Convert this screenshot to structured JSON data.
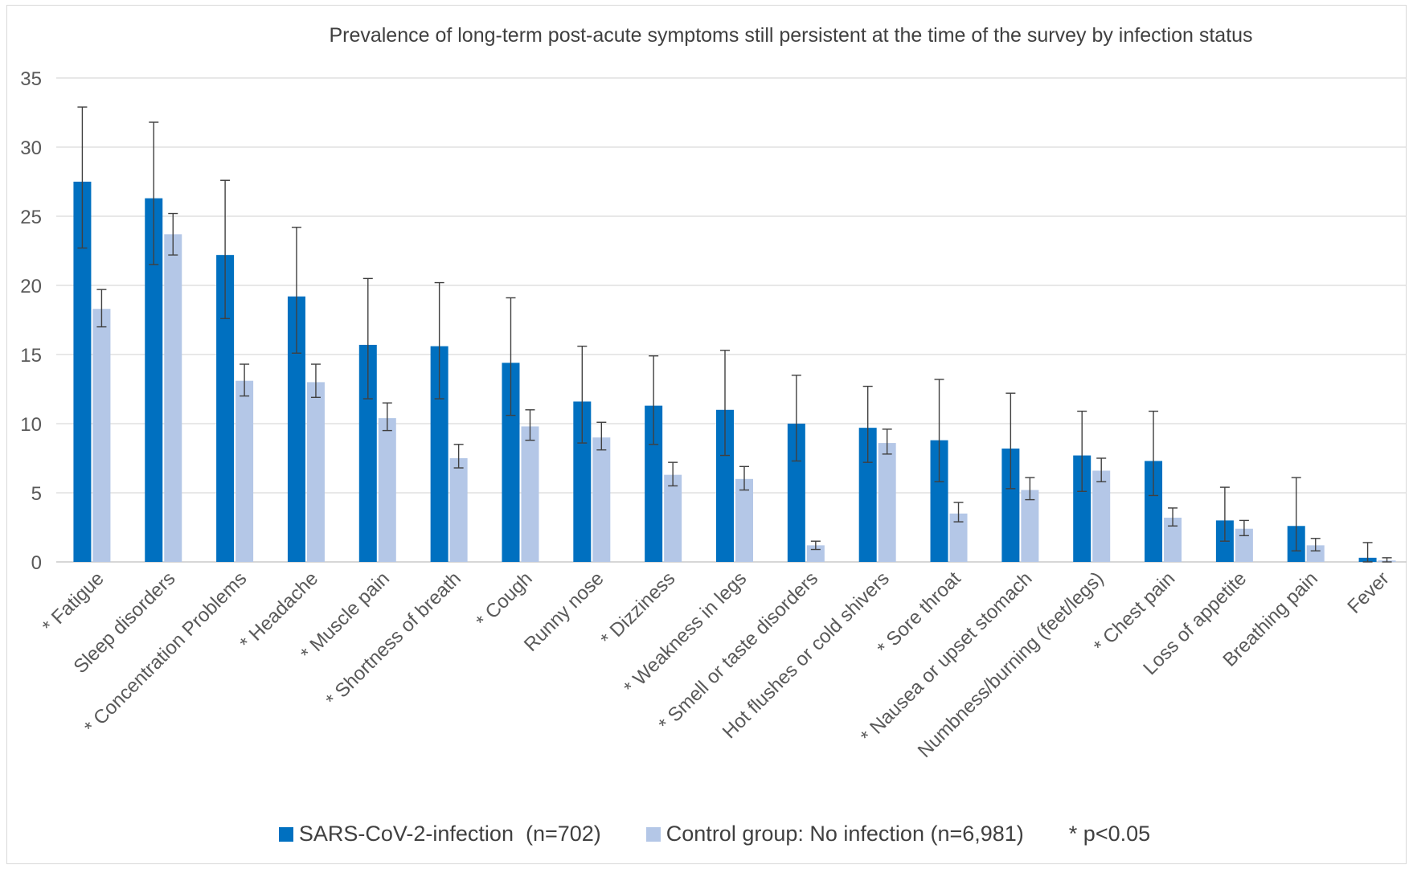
{
  "chart_data": {
    "type": "bar",
    "title": "Prevalence of long-term post-acute symptoms still persistent at the time of the survey by infection status",
    "xlabel": "",
    "ylabel": "",
    "ylim": [
      0,
      35
    ],
    "yticks": [
      0,
      5,
      10,
      15,
      20,
      25,
      30,
      35
    ],
    "grid": true,
    "legend_position": "bottom",
    "categories": [
      "* Fatigue",
      "Sleep disorders",
      "* Concentration Problems",
      "* Headache",
      "* Muscle pain",
      "* Shortness of breath",
      "* Cough",
      "Runny nose",
      "* Dizziness",
      "* Weakness in legs",
      "* Smell or taste disorders",
      "Hot flushes or cold shivers",
      "* Sore throat",
      "* Nausea or upset stomach",
      "Numbness/burning (feet/legs)",
      "* Chest pain",
      "Loss of appetite",
      "Breathing pain",
      "Fever"
    ],
    "series": [
      {
        "name": "SARS-CoV-2-infection  (n=702)",
        "color": "#0070c0",
        "values": [
          27.5,
          26.3,
          22.2,
          19.2,
          15.7,
          15.6,
          14.4,
          11.6,
          11.3,
          11.0,
          10.0,
          9.7,
          8.8,
          8.2,
          7.7,
          7.3,
          3.0,
          2.6,
          0.3
        ],
        "error_upper": [
          32.9,
          31.8,
          27.6,
          24.2,
          20.5,
          20.2,
          19.1,
          15.6,
          14.9,
          15.3,
          13.5,
          12.7,
          13.2,
          12.2,
          10.9,
          10.9,
          5.4,
          6.1,
          1.4
        ],
        "error_lower": [
          22.7,
          21.5,
          17.6,
          15.1,
          11.8,
          11.8,
          10.6,
          8.6,
          8.5,
          7.7,
          7.3,
          7.2,
          5.8,
          5.3,
          5.1,
          4.8,
          1.5,
          0.8,
          0.0
        ]
      },
      {
        "name": "Control group: No infection (n=6,981)",
        "color": "#b4c7e7",
        "values": [
          18.3,
          23.7,
          13.1,
          13.0,
          10.4,
          7.5,
          9.8,
          9.0,
          6.3,
          6.0,
          1.2,
          8.6,
          3.5,
          5.2,
          6.6,
          3.2,
          2.4,
          1.2,
          0.1
        ],
        "error_upper": [
          19.7,
          25.2,
          14.3,
          14.3,
          11.5,
          8.5,
          11.0,
          10.1,
          7.2,
          6.9,
          1.5,
          9.6,
          4.3,
          6.1,
          7.5,
          3.9,
          3.0,
          1.7,
          0.3
        ],
        "error_lower": [
          17.0,
          22.2,
          12.0,
          11.9,
          9.5,
          6.8,
          8.8,
          8.1,
          5.5,
          5.2,
          0.9,
          7.8,
          2.9,
          4.5,
          5.8,
          2.6,
          1.9,
          0.8,
          0.0
        ]
      }
    ],
    "footnote": "* p<0.05"
  }
}
